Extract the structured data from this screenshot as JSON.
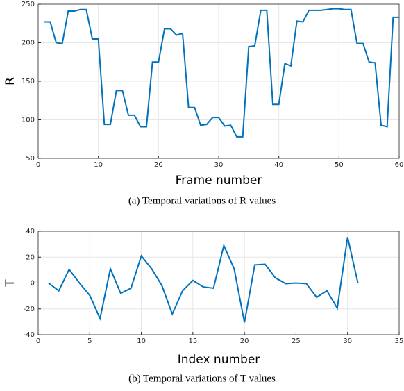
{
  "chart_data": [
    {
      "type": "line",
      "caption": "(a) Temporal variations of R values",
      "x_label": "Frame number",
      "y_label": "R",
      "xlim": [
        0,
        60
      ],
      "xticks": [
        0,
        10,
        20,
        30,
        40,
        50,
        60
      ],
      "ylim": [
        50,
        250
      ],
      "yticks": [
        50,
        100,
        150,
        200,
        250
      ],
      "grid": true,
      "x": [
        1,
        2,
        3,
        4,
        5,
        6,
        7,
        8,
        9,
        10,
        11,
        12,
        13,
        14,
        15,
        16,
        17,
        18,
        19,
        20,
        21,
        22,
        23,
        24,
        25,
        26,
        27,
        28,
        29,
        30,
        31,
        32,
        33,
        34,
        35,
        36,
        37,
        38,
        39,
        40,
        41,
        42,
        43,
        44,
        45,
        46,
        47,
        48,
        49,
        50,
        51,
        52,
        53,
        54,
        55,
        56,
        57,
        58,
        59,
        60
      ],
      "series": [
        {
          "color": "#0072bd",
          "values": [
            227,
            227,
            200,
            199,
            241,
            241,
            243,
            243,
            205,
            205,
            94,
            94,
            138,
            138,
            106,
            106,
            91,
            91,
            175,
            175,
            218,
            218,
            210,
            212,
            116,
            116,
            93,
            94,
            103,
            103,
            92,
            93,
            78,
            78,
            195,
            196,
            242,
            242,
            120,
            120,
            173,
            170,
            228,
            227,
            242,
            242,
            242,
            243,
            244,
            244,
            243,
            243,
            199,
            199,
            175,
            174,
            93,
            91,
            233,
            233
          ]
        }
      ]
    },
    {
      "type": "line",
      "caption": "(b) Temporal variations of T values",
      "x_label": "Index number",
      "y_label": "T",
      "xlim": [
        0,
        35
      ],
      "xticks": [
        0,
        5,
        10,
        15,
        20,
        25,
        30,
        35
      ],
      "ylim": [
        -40,
        40
      ],
      "yticks": [
        -40,
        -20,
        0,
        20,
        40
      ],
      "grid": true,
      "x": [
        1,
        2,
        3,
        4,
        5,
        6,
        7,
        8,
        9,
        10,
        11,
        12,
        13,
        14,
        15,
        16,
        17,
        18,
        19,
        20,
        21,
        22,
        23,
        24,
        25,
        26,
        27,
        28,
        29,
        30,
        31
      ],
      "series": [
        {
          "color": "#0072bd",
          "values": [
            0,
            -6,
            10.5,
            0,
            -9.5,
            -27.5,
            11,
            -8,
            -4,
            21,
            11,
            -2,
            -24,
            -6,
            2,
            -3,
            -4,
            29,
            11,
            -30.5,
            14,
            14.5,
            4,
            -0.5,
            0,
            -0.5,
            -11,
            -6,
            -19.5,
            35.5,
            0
          ]
        }
      ]
    }
  ]
}
